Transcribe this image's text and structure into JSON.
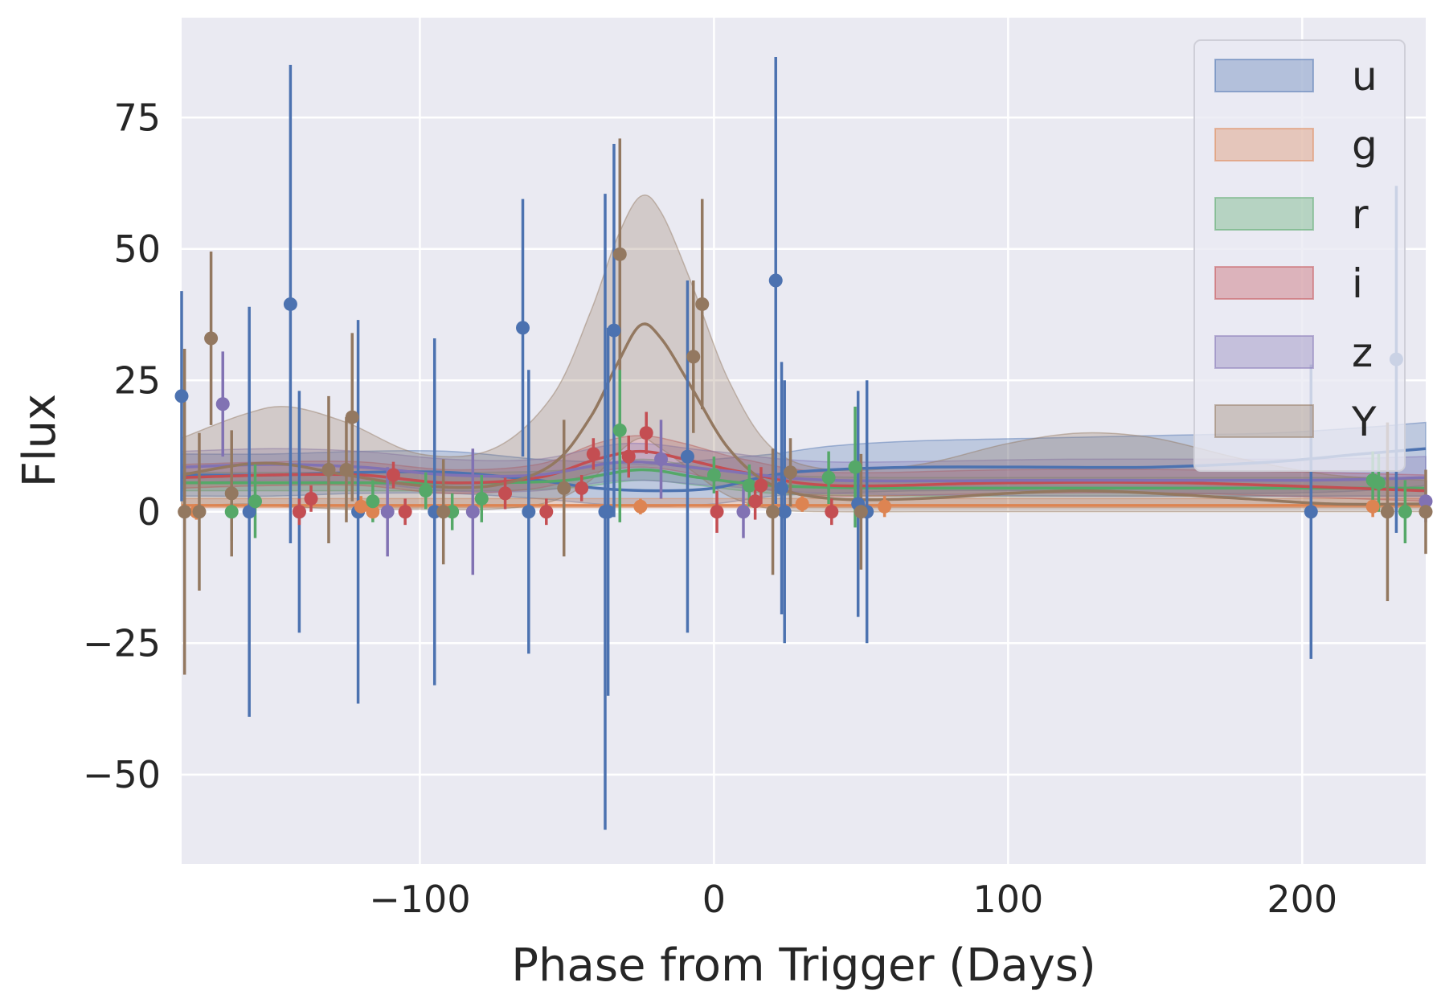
{
  "chart_data": {
    "type": "scatter",
    "title": "",
    "xlabel": "Phase from Trigger (Days)",
    "ylabel": "Flux",
    "xlim": [
      -181,
      242
    ],
    "ylim": [
      -67,
      94
    ],
    "xticks": [
      -100,
      0,
      100,
      200
    ],
    "yticks": [
      -50,
      -25,
      0,
      25,
      50,
      75
    ],
    "xtick_labels": [
      "−100",
      "0",
      "100",
      "200"
    ],
    "ytick_labels": [
      "−50",
      "−25",
      "0",
      "25",
      "50",
      "75"
    ],
    "grid": true,
    "legend_position": "top-right",
    "series": [
      {
        "name": "u",
        "color": "#4C72B0",
        "points": [
          {
            "x": -181,
            "y": 22,
            "err": 20
          },
          {
            "x": -158,
            "y": 0,
            "err": 39
          },
          {
            "x": -144,
            "y": 39.5,
            "err": 45.5
          },
          {
            "x": -141,
            "y": 0,
            "err": 23
          },
          {
            "x": -121,
            "y": 0,
            "err": 36.5
          },
          {
            "x": -95,
            "y": 0,
            "err": 33
          },
          {
            "x": -65,
            "y": 35,
            "err": 24.5
          },
          {
            "x": -63,
            "y": 0,
            "err": 27
          },
          {
            "x": -37,
            "y": 0,
            "err": 60.5
          },
          {
            "x": -36,
            "y": 0,
            "err": 35
          },
          {
            "x": -34,
            "y": 34.5,
            "err": 35.5
          },
          {
            "x": -9,
            "y": 10.5,
            "err": 33.5
          },
          {
            "x": 21,
            "y": 44,
            "err": 42.5
          },
          {
            "x": 23,
            "y": 4.5,
            "err": 24
          },
          {
            "x": 24,
            "y": 0,
            "err": 25
          },
          {
            "x": 49,
            "y": 1.5,
            "err": 21.5
          },
          {
            "x": 52,
            "y": 0,
            "err": 25
          },
          {
            "x": 203,
            "y": 0,
            "err": 28
          },
          {
            "x": 232,
            "y": 29,
            "err": 33
          }
        ],
        "curve": [
          {
            "x": -181,
            "y": 7.0,
            "lo": 3.0,
            "hi": 11.0
          },
          {
            "x": -150,
            "y": 7.0,
            "lo": 3.0,
            "hi": 11.0
          },
          {
            "x": -120,
            "y": 7.5,
            "lo": 3.5,
            "hi": 11.5
          },
          {
            "x": -90,
            "y": 7.5,
            "lo": 3.5,
            "hi": 11.5
          },
          {
            "x": -60,
            "y": 6.0,
            "lo": 2.5,
            "hi": 10.0
          },
          {
            "x": -40,
            "y": 4.5,
            "lo": 1.5,
            "hi": 9.5
          },
          {
            "x": -20,
            "y": 4.0,
            "lo": 1.0,
            "hi": 9.0
          },
          {
            "x": 0,
            "y": 4.5,
            "lo": 1.5,
            "hi": 10.0
          },
          {
            "x": 20,
            "y": 7.0,
            "lo": 3.0,
            "hi": 11.0
          },
          {
            "x": 40,
            "y": 8.0,
            "lo": 3.5,
            "hi": 12.5
          },
          {
            "x": 70,
            "y": 8.5,
            "lo": 4.0,
            "hi": 13.5
          },
          {
            "x": 110,
            "y": 8.5,
            "lo": 4.0,
            "hi": 14.0
          },
          {
            "x": 150,
            "y": 8.5,
            "lo": 3.5,
            "hi": 14.5
          },
          {
            "x": 190,
            "y": 9.5,
            "lo": 3.5,
            "hi": 15.0
          },
          {
            "x": 220,
            "y": 11.0,
            "lo": 4.0,
            "hi": 16.0
          },
          {
            "x": 242,
            "y": 12.0,
            "lo": 5.0,
            "hi": 17.0
          }
        ]
      },
      {
        "name": "g",
        "color": "#DD8452",
        "points": [
          {
            "x": -176,
            "y": 0,
            "err": 1.5
          },
          {
            "x": -120,
            "y": 1.0,
            "err": 2.0
          },
          {
            "x": -116,
            "y": 0,
            "err": 1.5
          },
          {
            "x": -25,
            "y": 1.0,
            "err": 1.5
          },
          {
            "x": 30,
            "y": 1.5,
            "err": 1.5
          },
          {
            "x": 58,
            "y": 1.0,
            "err": 2.0
          },
          {
            "x": 224,
            "y": 1.0,
            "err": 2.0
          }
        ],
        "curve": [
          {
            "x": -181,
            "y": 1.2,
            "lo": 0.8,
            "hi": 2.5
          },
          {
            "x": -100,
            "y": 1.2,
            "lo": 0.8,
            "hi": 2.5
          },
          {
            "x": 0,
            "y": 1.2,
            "lo": 0.8,
            "hi": 2.5
          },
          {
            "x": 100,
            "y": 1.2,
            "lo": 0.8,
            "hi": 2.5
          },
          {
            "x": 242,
            "y": 1.2,
            "lo": 0.8,
            "hi": 2.5
          }
        ]
      },
      {
        "name": "r",
        "color": "#55A868",
        "points": [
          {
            "x": -164,
            "y": 0,
            "err": 5.5
          },
          {
            "x": -156,
            "y": 2.0,
            "err": 7.0
          },
          {
            "x": -116,
            "y": 2.0,
            "err": 4.0
          },
          {
            "x": -98,
            "y": 4.0,
            "err": 3.5
          },
          {
            "x": -89,
            "y": 0,
            "err": 3.5
          },
          {
            "x": -79,
            "y": 2.5,
            "err": 4.5
          },
          {
            "x": -32,
            "y": 15.5,
            "err": 17.5
          },
          {
            "x": 0,
            "y": 7.0,
            "err": 3.5
          },
          {
            "x": 12,
            "y": 5.0,
            "err": 4.0
          },
          {
            "x": 39,
            "y": 6.5,
            "err": 5.0
          },
          {
            "x": 48,
            "y": 8.5,
            "err": 11.5
          },
          {
            "x": 224,
            "y": 6.0,
            "err": 5.5
          },
          {
            "x": 226,
            "y": 5.5,
            "err": 5.5
          },
          {
            "x": 235,
            "y": 0,
            "err": 6.0
          }
        ],
        "curve": [
          {
            "x": -181,
            "y": 5.5,
            "lo": 4.0,
            "hi": 7.5
          },
          {
            "x": -120,
            "y": 5.5,
            "lo": 4.0,
            "hi": 7.5
          },
          {
            "x": -80,
            "y": 5.5,
            "lo": 4.0,
            "hi": 7.5
          },
          {
            "x": -50,
            "y": 6.0,
            "lo": 4.5,
            "hi": 8.0
          },
          {
            "x": -25,
            "y": 8.0,
            "lo": 6.0,
            "hi": 10.0
          },
          {
            "x": -5,
            "y": 6.5,
            "lo": 5.0,
            "hi": 8.5
          },
          {
            "x": 20,
            "y": 5.0,
            "lo": 3.5,
            "hi": 7.0
          },
          {
            "x": 60,
            "y": 4.5,
            "lo": 3.0,
            "hi": 6.5
          },
          {
            "x": 120,
            "y": 4.5,
            "lo": 3.0,
            "hi": 6.5
          },
          {
            "x": 200,
            "y": 4.5,
            "lo": 3.0,
            "hi": 6.5
          },
          {
            "x": 242,
            "y": 4.5,
            "lo": 3.0,
            "hi": 6.5
          }
        ]
      },
      {
        "name": "i",
        "color": "#C44E52",
        "points": [
          {
            "x": -141,
            "y": 0,
            "err": 2.5
          },
          {
            "x": -137,
            "y": 2.5,
            "err": 2.5
          },
          {
            "x": -109,
            "y": 7.0,
            "err": 2.5
          },
          {
            "x": -105,
            "y": 0,
            "err": 2.5
          },
          {
            "x": -71,
            "y": 3.5,
            "err": 3.0
          },
          {
            "x": -57,
            "y": 0,
            "err": 2.5
          },
          {
            "x": -45,
            "y": 4.5,
            "err": 2.5
          },
          {
            "x": -41,
            "y": 11.0,
            "err": 3.0
          },
          {
            "x": -29,
            "y": 10.5,
            "err": 4.0
          },
          {
            "x": -23,
            "y": 15.0,
            "err": 4.0
          },
          {
            "x": 1,
            "y": 0,
            "err": 4.0
          },
          {
            "x": 14,
            "y": 2.0,
            "err": 3.5
          },
          {
            "x": 16,
            "y": 5.0,
            "err": 3.5
          },
          {
            "x": 40,
            "y": 0,
            "err": 2.5
          }
        ],
        "curve": [
          {
            "x": -181,
            "y": 6.5,
            "lo": 4.5,
            "hi": 9.0
          },
          {
            "x": -150,
            "y": 7.0,
            "lo": 5.0,
            "hi": 9.5
          },
          {
            "x": -120,
            "y": 7.0,
            "lo": 5.0,
            "hi": 9.5
          },
          {
            "x": -90,
            "y": 5.5,
            "lo": 3.5,
            "hi": 8.0
          },
          {
            "x": -60,
            "y": 6.5,
            "lo": 4.5,
            "hi": 9.0
          },
          {
            "x": -40,
            "y": 10.0,
            "lo": 7.5,
            "hi": 13.0
          },
          {
            "x": -25,
            "y": 11.5,
            "lo": 8.5,
            "hi": 14.5
          },
          {
            "x": -10,
            "y": 10.0,
            "lo": 7.5,
            "hi": 13.0
          },
          {
            "x": 10,
            "y": 7.5,
            "lo": 5.0,
            "hi": 10.0
          },
          {
            "x": 40,
            "y": 5.0,
            "lo": 3.0,
            "hi": 7.5
          },
          {
            "x": 100,
            "y": 5.5,
            "lo": 3.5,
            "hi": 8.0
          },
          {
            "x": 160,
            "y": 5.5,
            "lo": 3.5,
            "hi": 8.0
          },
          {
            "x": 242,
            "y": 4.0,
            "lo": 2.0,
            "hi": 7.0
          }
        ]
      },
      {
        "name": "z",
        "color": "#8172B3",
        "points": [
          {
            "x": -167,
            "y": 20.5,
            "err": 10.0
          },
          {
            "x": -111,
            "y": 0,
            "err": 8.5
          },
          {
            "x": -82,
            "y": 0,
            "err": 12.0
          },
          {
            "x": -18,
            "y": 10.0,
            "err": 7.5
          },
          {
            "x": 10,
            "y": 0,
            "err": 5.0
          },
          {
            "x": 242,
            "y": 2.0,
            "err": 4.0
          }
        ],
        "curve": [
          {
            "x": -181,
            "y": 8.5,
            "lo": 5.5,
            "hi": 11.5
          },
          {
            "x": -150,
            "y": 9.0,
            "lo": 6.0,
            "hi": 12.0
          },
          {
            "x": -120,
            "y": 8.5,
            "lo": 5.5,
            "hi": 11.5
          },
          {
            "x": -90,
            "y": 7.0,
            "lo": 4.0,
            "hi": 10.0
          },
          {
            "x": -60,
            "y": 7.0,
            "lo": 4.0,
            "hi": 10.0
          },
          {
            "x": -30,
            "y": 9.5,
            "lo": 6.0,
            "hi": 13.0
          },
          {
            "x": 0,
            "y": 8.0,
            "lo": 5.0,
            "hi": 11.5
          },
          {
            "x": 40,
            "y": 6.0,
            "lo": 3.5,
            "hi": 9.5
          },
          {
            "x": 120,
            "y": 6.0,
            "lo": 3.0,
            "hi": 10.0
          },
          {
            "x": 200,
            "y": 6.0,
            "lo": 3.0,
            "hi": 10.0
          },
          {
            "x": 242,
            "y": 6.5,
            "lo": 3.0,
            "hi": 10.5
          }
        ]
      },
      {
        "name": "Y",
        "color": "#937860",
        "points": [
          {
            "x": -180,
            "y": 0,
            "err": 31
          },
          {
            "x": -175,
            "y": 0,
            "err": 15
          },
          {
            "x": -171,
            "y": 33.0,
            "err": 16.5
          },
          {
            "x": -164,
            "y": 3.5,
            "err": 12
          },
          {
            "x": -131,
            "y": 8.0,
            "err": 14
          },
          {
            "x": -125,
            "y": 8.0,
            "err": 10
          },
          {
            "x": -123,
            "y": 18.0,
            "err": 16
          },
          {
            "x": -51,
            "y": 4.5,
            "err": 13
          },
          {
            "x": -92,
            "y": 0,
            "err": 10
          },
          {
            "x": -32,
            "y": 49.0,
            "err": 22
          },
          {
            "x": -7,
            "y": 29.5,
            "err": 14.5
          },
          {
            "x": -4,
            "y": 39.5,
            "err": 20
          },
          {
            "x": 20,
            "y": 0,
            "err": 12
          },
          {
            "x": 26,
            "y": 7.5,
            "err": 6.5
          },
          {
            "x": 50,
            "y": 0,
            "err": 11
          },
          {
            "x": 229,
            "y": 0,
            "err": 17
          },
          {
            "x": 242,
            "y": 0,
            "err": 8
          }
        ],
        "curve": [
          {
            "x": -181,
            "y": 7.0,
            "lo": 1.0,
            "hi": 14.0
          },
          {
            "x": -160,
            "y": 9.0,
            "lo": 1.5,
            "hi": 18.5
          },
          {
            "x": -145,
            "y": 9.0,
            "lo": 1.0,
            "hi": 20.0
          },
          {
            "x": -125,
            "y": 7.0,
            "lo": 0.5,
            "hi": 17.0
          },
          {
            "x": -100,
            "y": 5.0,
            "lo": 0.5,
            "hi": 11.0
          },
          {
            "x": -75,
            "y": 5.0,
            "lo": 0.5,
            "hi": 12.0
          },
          {
            "x": -55,
            "y": 9.0,
            "lo": 2.0,
            "hi": 22.0
          },
          {
            "x": -42,
            "y": 18.0,
            "lo": 6.0,
            "hi": 38.0
          },
          {
            "x": -33,
            "y": 28.0,
            "lo": 11.0,
            "hi": 52.0
          },
          {
            "x": -25,
            "y": 35.5,
            "lo": 14.0,
            "hi": 60.0
          },
          {
            "x": -18,
            "y": 33.0,
            "lo": 12.0,
            "hi": 57.0
          },
          {
            "x": -8,
            "y": 24.0,
            "lo": 8.0,
            "hi": 44.0
          },
          {
            "x": 5,
            "y": 12.0,
            "lo": 3.0,
            "hi": 25.0
          },
          {
            "x": 20,
            "y": 5.0,
            "lo": 0.5,
            "hi": 12.0
          },
          {
            "x": 40,
            "y": 2.5,
            "lo": 0.0,
            "hi": 8.0
          },
          {
            "x": 70,
            "y": 2.5,
            "lo": 0.0,
            "hi": 9.0
          },
          {
            "x": 100,
            "y": 3.5,
            "lo": 0.0,
            "hi": 13.0
          },
          {
            "x": 125,
            "y": 4.0,
            "lo": 0.0,
            "hi": 15.0
          },
          {
            "x": 150,
            "y": 3.5,
            "lo": 0.0,
            "hi": 14.0
          },
          {
            "x": 180,
            "y": 2.5,
            "lo": 0.0,
            "hi": 10.0
          },
          {
            "x": 210,
            "y": 1.5,
            "lo": 0.0,
            "hi": 7.0
          },
          {
            "x": 242,
            "y": 1.5,
            "lo": 0.0,
            "hi": 6.0
          }
        ]
      }
    ]
  }
}
